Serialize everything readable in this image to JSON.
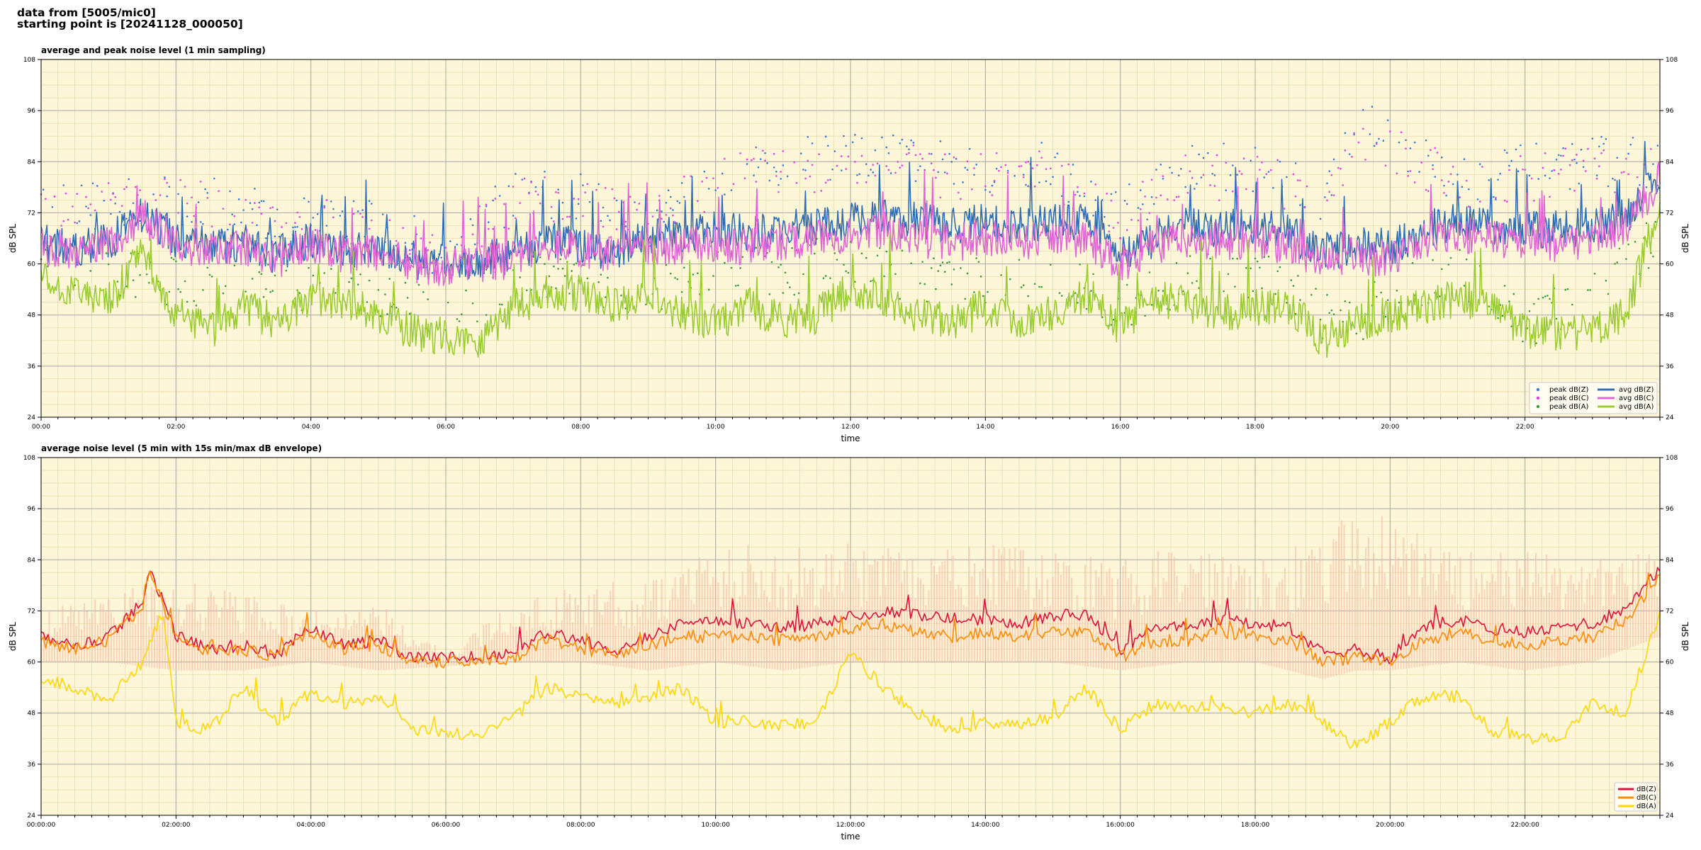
{
  "header": {
    "line1": "data from [5005/mic0]",
    "line2": "starting point is [20241128_000050]"
  },
  "chart_data": [
    {
      "type": "line",
      "title": "average and peak noise level (1 min sampling)",
      "xlabel": "time",
      "ylabel": "dB SPL",
      "xlim": [
        "00:00",
        "24:00"
      ],
      "ylim": [
        24,
        108
      ],
      "yticks": [
        24,
        36,
        48,
        60,
        72,
        84,
        96,
        108
      ],
      "xtick_labels": [
        "00:00",
        "02:00",
        "04:00",
        "06:00",
        "08:00",
        "10:00",
        "12:00",
        "14:00",
        "16:00",
        "18:00",
        "20:00",
        "22:00"
      ],
      "grid": true,
      "background": "#fdf6d8",
      "legend_position": "bottom-right",
      "series": [
        {
          "name": "peak dB(Z)",
          "kind": "scatter",
          "color": "#3a7bd5",
          "x_hours": [
            0,
            2,
            4,
            5,
            6,
            7,
            8,
            9,
            10,
            11,
            12,
            13,
            14,
            15,
            16,
            17,
            18,
            19,
            19.5,
            20,
            21,
            22,
            23,
            24
          ],
          "values": [
            72,
            76,
            70,
            70,
            62,
            76,
            76,
            70,
            82,
            84,
            85,
            84,
            82,
            83,
            72,
            82,
            83,
            75,
            92,
            90,
            80,
            82,
            84,
            84
          ]
        },
        {
          "name": "peak dB(C)",
          "kind": "scatter",
          "color": "#e040e0",
          "x_hours": [
            0,
            2,
            4,
            5,
            6,
            7,
            8,
            9,
            10,
            11,
            12,
            13,
            14,
            15,
            16,
            17,
            18,
            19,
            19.5,
            20,
            21,
            22,
            23,
            24
          ],
          "values": [
            71,
            75,
            69,
            69,
            61,
            75,
            75,
            69,
            80,
            82,
            83,
            82,
            80,
            81,
            71,
            80,
            81,
            74,
            90,
            88,
            79,
            80,
            82,
            83
          ]
        },
        {
          "name": "peak dB(A)",
          "kind": "scatter",
          "color": "#3d9a3d",
          "x_hours": [
            0,
            2,
            4,
            5,
            6,
            7,
            8,
            9,
            10,
            11,
            12,
            13,
            14,
            15,
            16,
            17,
            18,
            19,
            19.5,
            20,
            21,
            22,
            23,
            24
          ],
          "values": [
            60,
            56,
            54,
            54,
            46,
            58,
            56,
            52,
            60,
            58,
            62,
            56,
            56,
            58,
            50,
            56,
            58,
            48,
            46,
            54,
            58,
            46,
            54,
            66
          ]
        },
        {
          "name": "avg dB(Z)",
          "kind": "line",
          "color": "#2f6db5",
          "x_hours": [
            0,
            0.5,
            1,
            1.5,
            2,
            2.5,
            3,
            3.5,
            4,
            4.5,
            5,
            5.5,
            6,
            6.5,
            7,
            7.5,
            8,
            8.5,
            9,
            9.5,
            10,
            10.5,
            11,
            11.5,
            12,
            12.5,
            13,
            13.5,
            14,
            14.5,
            15,
            15.5,
            16,
            16.5,
            17,
            17.5,
            18,
            18.5,
            19,
            19.5,
            20,
            20.5,
            21,
            21.5,
            22,
            22.5,
            23,
            23.5,
            24
          ],
          "values": [
            65,
            64,
            65,
            72,
            66,
            64,
            65,
            62,
            66,
            63,
            64,
            61,
            60,
            61,
            62,
            66,
            64,
            63,
            66,
            67,
            68,
            67,
            68,
            69,
            70,
            71,
            70,
            69,
            70,
            69,
            70,
            70,
            62,
            66,
            69,
            68,
            69,
            67,
            63,
            64,
            64,
            68,
            70,
            69,
            68,
            68,
            69,
            71,
            82
          ]
        },
        {
          "name": "avg dB(C)",
          "kind": "line",
          "color": "#e066d6",
          "x_hours": [
            0,
            0.5,
            1,
            1.5,
            2,
            2.5,
            3,
            3.5,
            4,
            4.5,
            5,
            5.5,
            6,
            6.5,
            7,
            7.5,
            8,
            8.5,
            9,
            9.5,
            10,
            10.5,
            11,
            11.5,
            12,
            12.5,
            13,
            13.5,
            14,
            14.5,
            15,
            15.5,
            16,
            16.5,
            17,
            17.5,
            18,
            18.5,
            19,
            19.5,
            20,
            20.5,
            21,
            21.5,
            22,
            22.5,
            23,
            23.5,
            24
          ],
          "values": [
            64,
            63,
            64,
            71,
            65,
            63,
            64,
            61,
            65,
            62,
            63,
            60,
            59,
            60,
            61,
            65,
            63,
            62,
            64,
            64,
            65,
            64,
            65,
            66,
            67,
            68,
            66,
            65,
            66,
            65,
            66,
            66,
            60,
            64,
            66,
            65,
            66,
            64,
            61,
            62,
            61,
            65,
            67,
            66,
            65,
            65,
            66,
            69,
            80
          ]
        },
        {
          "name": "avg dB(A)",
          "kind": "line",
          "color": "#9acd32",
          "x_hours": [
            0,
            0.5,
            1,
            1.5,
            2,
            2.5,
            3,
            3.5,
            4,
            4.5,
            5,
            5.5,
            6,
            6.5,
            7,
            7.5,
            8,
            8.5,
            9,
            9.5,
            10,
            10.5,
            11,
            11.5,
            12,
            12.5,
            13,
            13.5,
            14,
            14.5,
            15,
            15.5,
            16,
            16.5,
            17,
            17.5,
            18,
            18.5,
            19,
            19.5,
            20,
            20.5,
            21,
            21.5,
            22,
            22.5,
            23,
            23.5,
            24
          ],
          "values": [
            58,
            53,
            51,
            62,
            48,
            44,
            50,
            46,
            52,
            50,
            48,
            44,
            43,
            42,
            50,
            53,
            53,
            50,
            52,
            49,
            46,
            50,
            47,
            48,
            54,
            52,
            48,
            46,
            50,
            47,
            48,
            53,
            45,
            52,
            51,
            48,
            50,
            50,
            42,
            46,
            48,
            50,
            52,
            50,
            44,
            44,
            44,
            48,
            74
          ]
        }
      ]
    },
    {
      "type": "line",
      "title": "average noise level (5 min with 15s min/max dB envelope)",
      "xlabel": "time",
      "ylabel": "dB SPL",
      "xlim": [
        "00:00:00",
        "24:00:00"
      ],
      "ylim": [
        24,
        108
      ],
      "yticks": [
        24,
        36,
        48,
        60,
        72,
        84,
        96,
        108
      ],
      "xtick_labels": [
        "00:00:00",
        "02:00:00",
        "04:00:00",
        "06:00:00",
        "08:00:00",
        "10:00:00",
        "12:00:00",
        "14:00:00",
        "16:00:00",
        "18:00:00",
        "20:00:00",
        "22:00:00"
      ],
      "grid": true,
      "background": "#fdf6d8",
      "legend_position": "bottom-right",
      "envelope": {
        "color": "#f4b6a0",
        "x_hours": [
          0,
          1,
          2,
          3,
          4,
          5,
          6,
          7,
          8,
          9,
          10,
          11,
          12,
          13,
          14,
          15,
          16,
          17,
          18,
          19,
          19.5,
          20,
          21,
          22,
          23,
          24
        ],
        "max": [
          72,
          76,
          80,
          76,
          72,
          74,
          62,
          74,
          78,
          80,
          88,
          88,
          88,
          86,
          88,
          86,
          84,
          88,
          86,
          90,
          96,
          94,
          86,
          86,
          86,
          86
        ],
        "min": [
          60,
          60,
          58,
          58,
          60,
          58,
          59,
          60,
          60,
          58,
          60,
          58,
          60,
          60,
          60,
          60,
          58,
          60,
          60,
          56,
          58,
          58,
          60,
          58,
          60,
          66
        ]
      },
      "series": [
        {
          "name": "dB(Z)",
          "color": "#dc143c",
          "x_hours": [
            0,
            0.5,
            1,
            1.5,
            1.6,
            2,
            2.5,
            3,
            3.5,
            4,
            4.5,
            5,
            5.5,
            6,
            6.5,
            7,
            7.5,
            8,
            8.5,
            9,
            9.5,
            10,
            10.5,
            11,
            11.5,
            12,
            12.5,
            13,
            13.5,
            14,
            14.5,
            15,
            15.5,
            16,
            16.5,
            17,
            17.5,
            18,
            18.5,
            19,
            19.5,
            20,
            20.5,
            21,
            21.5,
            22,
            22.5,
            23,
            23.5,
            24
          ],
          "values": [
            66,
            64,
            66,
            74,
            83,
            66,
            63,
            64,
            62,
            68,
            64,
            65,
            61,
            61,
            61,
            62,
            67,
            65,
            63,
            66,
            69,
            70,
            69,
            68,
            69,
            71,
            72,
            71,
            70,
            70,
            69,
            71,
            71,
            63,
            68,
            68,
            70,
            69,
            68,
            62,
            63,
            61,
            68,
            70,
            68,
            67,
            68,
            69,
            73,
            82
          ]
        },
        {
          "name": "dB(C)",
          "color": "#ff8c00",
          "x_hours": [
            0,
            0.5,
            1,
            1.5,
            1.6,
            2,
            2.5,
            3,
            3.5,
            4,
            4.5,
            5,
            5.5,
            6,
            6.5,
            7,
            7.5,
            8,
            8.5,
            9,
            9.5,
            10,
            10.5,
            11,
            11.5,
            12,
            12.5,
            13,
            13.5,
            14,
            14.5,
            15,
            15.5,
            16,
            16.5,
            17,
            17.5,
            18,
            18.5,
            19,
            19.5,
            20,
            20.5,
            21,
            21.5,
            22,
            22.5,
            23,
            23.5,
            24
          ],
          "values": [
            65,
            63,
            65,
            73,
            82,
            65,
            62,
            63,
            61,
            67,
            63,
            64,
            60,
            60,
            60,
            61,
            65,
            63,
            62,
            64,
            66,
            66,
            66,
            65,
            66,
            68,
            69,
            67,
            66,
            67,
            66,
            67,
            67,
            61,
            65,
            65,
            67,
            66,
            65,
            60,
            61,
            60,
            65,
            67,
            65,
            64,
            65,
            66,
            70,
            80
          ]
        },
        {
          "name": "dB(A)",
          "color": "#ffd700",
          "x_hours": [
            0,
            0.5,
            1,
            1.5,
            1.8,
            2,
            2.5,
            3,
            3.5,
            4,
            4.5,
            5,
            5.5,
            6,
            6.5,
            7,
            7.5,
            8,
            8.5,
            9,
            9.5,
            10,
            10.5,
            11,
            11.5,
            12,
            12.5,
            13,
            13.5,
            14,
            14.5,
            15,
            15.5,
            16,
            16.5,
            17,
            17.5,
            18,
            18.5,
            19,
            19.5,
            20,
            20.5,
            21,
            21.5,
            22,
            22.5,
            23,
            23.5,
            24
          ],
          "values": [
            56,
            54,
            51,
            60,
            72,
            46,
            44,
            54,
            46,
            53,
            50,
            52,
            44,
            43,
            43,
            47,
            54,
            52,
            50,
            52,
            54,
            46,
            46,
            45,
            46,
            62,
            54,
            48,
            44,
            46,
            45,
            47,
            54,
            44,
            50,
            49,
            50,
            48,
            50,
            46,
            40,
            46,
            52,
            52,
            44,
            42,
            42,
            50,
            48,
            72
          ]
        }
      ]
    }
  ]
}
